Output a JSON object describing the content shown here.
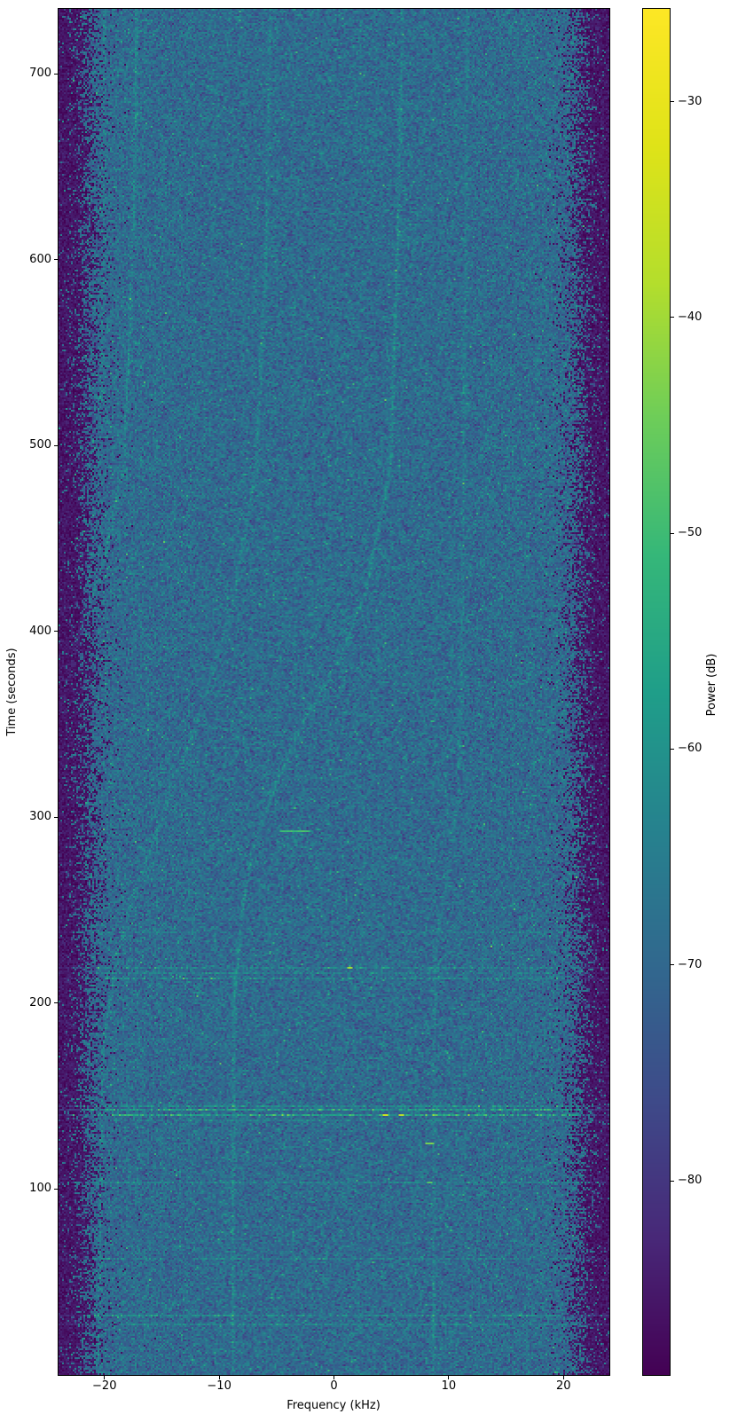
{
  "chart_data": {
    "type": "heatmap",
    "subtype": "spectrogram",
    "title": "",
    "xlabel": "Frequency (kHz)",
    "ylabel": "Time (seconds)",
    "xlim": [
      -24,
      24
    ],
    "ylim": [
      0,
      735
    ],
    "grid": false,
    "x_ticks": [
      {
        "v": -20,
        "label": "−20"
      },
      {
        "v": -10,
        "label": "−10"
      },
      {
        "v": 0,
        "label": "0"
      },
      {
        "v": 10,
        "label": "10"
      },
      {
        "v": 20,
        "label": "20"
      }
    ],
    "y_ticks": [
      {
        "v": 100,
        "label": "100"
      },
      {
        "v": 200,
        "label": "200"
      },
      {
        "v": 300,
        "label": "300"
      },
      {
        "v": 400,
        "label": "400"
      },
      {
        "v": 500,
        "label": "500"
      },
      {
        "v": 600,
        "label": "600"
      },
      {
        "v": 700,
        "label": "700"
      }
    ],
    "colorbar": {
      "label": "Power (dB)",
      "colormap": "viridis",
      "vmin": -89.0,
      "vmax": -25.7,
      "ticks": [
        {
          "v": -30,
          "label": "−30"
        },
        {
          "v": -40,
          "label": "−40"
        },
        {
          "v": -50,
          "label": "−50"
        },
        {
          "v": -60,
          "label": "−60"
        },
        {
          "v": -70,
          "label": "−70"
        },
        {
          "v": -80,
          "label": "−80"
        }
      ]
    },
    "noise": {
      "inband_floor_db": -69.3,
      "inband_sigma_db": 4.0,
      "edge_floor_db": -85.8,
      "edge_sigma_db": 2.0,
      "passband_edge_khz": 21.4,
      "rolloff_width_khz": 0.7,
      "speck_probability": 0.012
    },
    "doppler_tracks": [
      {
        "name": "track-1",
        "strength": 0.55,
        "fade_zero_t": 352,
        "fade_full_t": 420,
        "anchors": [
          [
            735,
            -17.2
          ],
          [
            640,
            -17.4
          ],
          [
            560,
            -17.8
          ],
          [
            487,
            -18.4
          ],
          [
            434,
            -20.2
          ],
          [
            401,
            -22.1
          ],
          [
            372,
            -23.2
          ],
          [
            352,
            -23.9
          ]
        ]
      },
      {
        "name": "track-2",
        "strength": 0.45,
        "fade_zero_t": null,
        "fade_full_t": null,
        "anchors": [
          [
            735,
            -5.5
          ],
          [
            600,
            -5.9
          ],
          [
            487,
            -6.8
          ],
          [
            415,
            -8.8
          ],
          [
            348,
            -12.1
          ],
          [
            296,
            -15.2
          ],
          [
            258,
            -17.5
          ],
          [
            224,
            -18.9
          ],
          [
            180,
            -20.1
          ],
          [
            90,
            -20.4
          ],
          [
            0,
            -20.5
          ]
        ]
      },
      {
        "name": "track-3",
        "strength": 0.6,
        "fade_zero_t": null,
        "fade_full_t": null,
        "anchors": [
          [
            735,
            6.0
          ],
          [
            600,
            5.5
          ],
          [
            487,
            4.9
          ],
          [
            423,
            2.8
          ],
          [
            385,
            0.5
          ],
          [
            352,
            -2.6
          ],
          [
            320,
            -4.9
          ],
          [
            280,
            -7.2
          ],
          [
            248,
            -8.0
          ],
          [
            200,
            -8.7
          ],
          [
            0,
            -8.8
          ]
        ]
      },
      {
        "name": "track-4",
        "strength": 0.38,
        "fade_zero_t": null,
        "fade_full_t": null,
        "anchors": [
          [
            735,
            11.6
          ],
          [
            500,
            11.3
          ],
          [
            380,
            11.1
          ],
          [
            312,
            10.8
          ],
          [
            270,
            9.9
          ],
          [
            234,
            8.9
          ],
          [
            180,
            8.7
          ],
          [
            0,
            8.65
          ]
        ]
      },
      {
        "name": "track-5",
        "strength": 0.3,
        "fade_zero_t": 390,
        "fade_full_t": 450,
        "anchors": [
          [
            735,
            -20.0
          ],
          [
            560,
            -20.2
          ],
          [
            470,
            -20.6
          ],
          [
            420,
            -21.5
          ],
          [
            395,
            -22.5
          ],
          [
            380,
            -23.3
          ]
        ]
      }
    ],
    "interference_bursts": [
      {
        "t": 238,
        "strength": 0.25,
        "spots": []
      },
      {
        "t": 219,
        "strength": 0.5,
        "spots": [
          {
            "f": 1.4,
            "db": -40
          }
        ]
      },
      {
        "t": 216,
        "strength": 0.3,
        "spots": []
      },
      {
        "t": 213,
        "strength": 0.45,
        "spots": []
      },
      {
        "t": 145,
        "strength": 0.5,
        "spots": []
      },
      {
        "t": 143,
        "strength": 0.8,
        "spots": []
      },
      {
        "t": 140,
        "strength": 0.85,
        "spots": [
          {
            "f": 4.4,
            "db": -36
          },
          {
            "f": 5.8,
            "db": -38
          }
        ]
      },
      {
        "t": 137,
        "strength": 0.3,
        "spots": []
      },
      {
        "t": 104,
        "strength": 0.35,
        "spots": [
          {
            "f": 8.3,
            "db": -48
          }
        ]
      },
      {
        "t": 63,
        "strength": 0.5,
        "spots": []
      },
      {
        "t": 32,
        "strength": 0.5,
        "spots": []
      },
      {
        "t": 27,
        "strength": 0.4,
        "spots": []
      }
    ],
    "bright_spots": [
      {
        "t": 293,
        "f": -3.4,
        "db": -50,
        "w_khz": 1.2
      },
      {
        "t": 125,
        "f": 8.3,
        "db": -44,
        "w_khz": 0.3
      }
    ],
    "render_seed": 42
  }
}
